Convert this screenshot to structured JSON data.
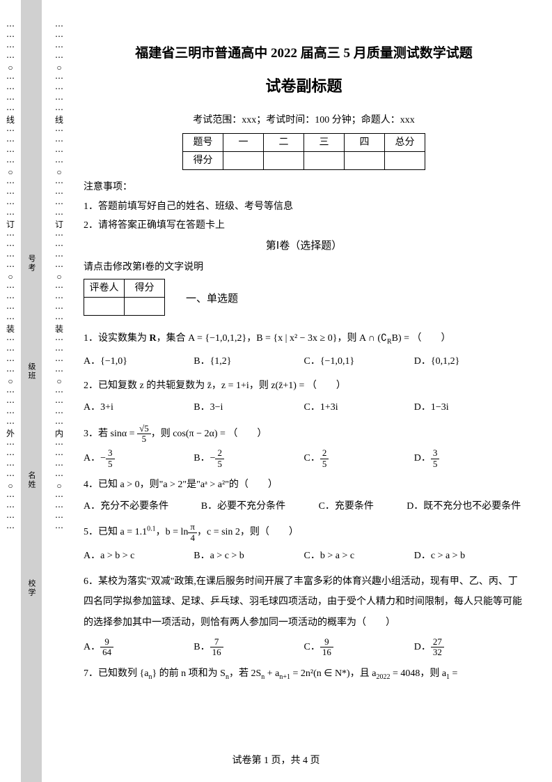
{
  "margin": {
    "left_outer_marks": [
      "⋯",
      "⋯",
      "⋯",
      "⋯",
      "○",
      "⋯",
      "⋯",
      "⋯",
      "⋯",
      "线",
      "⋯",
      "⋯",
      "⋯",
      "⋯",
      "○",
      "⋯",
      "⋯",
      "⋯",
      "⋯",
      "订",
      "⋯",
      "⋯",
      "⋯",
      "⋯",
      "○",
      "⋯",
      "⋯",
      "⋯",
      "⋯",
      "装",
      "⋯",
      "⋯",
      "⋯",
      "⋯",
      "○",
      "⋯",
      "⋯",
      "⋯",
      "⋯",
      "外",
      "⋯",
      "⋯",
      "⋯",
      "⋯",
      "○",
      "⋯",
      "⋯",
      "⋯",
      "⋯"
    ],
    "left_inner_marks": [
      "⋯",
      "⋯",
      "⋯",
      "⋯",
      "○",
      "⋯",
      "⋯",
      "⋯",
      "⋯",
      "线",
      "⋯",
      "⋯",
      "⋯",
      "⋯",
      "○",
      "⋯",
      "⋯",
      "⋯",
      "⋯",
      "订",
      "⋯",
      "⋯",
      "⋯",
      "⋯",
      "○",
      "⋯",
      "⋯",
      "⋯",
      "⋯",
      "装",
      "⋯",
      "⋯",
      "⋯",
      "⋯",
      "○",
      "⋯",
      "⋯",
      "⋯",
      "⋯",
      "内",
      "⋯",
      "⋯",
      "⋯",
      "⋯",
      "○",
      "⋯",
      "⋯",
      "⋯",
      "⋯"
    ],
    "vlabels": [
      "号考",
      "级班",
      "名姓",
      "校学"
    ]
  },
  "header": {
    "title": "福建省三明市普通高中 2022 届高三 5 月质量测试数学试题",
    "subtitle": "试卷副标题",
    "meta": "考试范围：xxx；考试时间：100 分钟；命题人：xxx"
  },
  "score_table": {
    "headers": [
      "题号",
      "一",
      "二",
      "三",
      "四",
      "总分"
    ],
    "row_label": "得分"
  },
  "notes": {
    "heading": "注意事项：",
    "item1": "1．答题前填写好自己的姓名、班级、考号等信息",
    "item2": "2．请将答案正确填写在答题卡上"
  },
  "section": {
    "juan_header": "第Ⅰ卷（选择题）",
    "instruction": "请点击修改第Ⅰ卷的文字说明",
    "grader_headers": [
      "评卷人",
      "得分"
    ],
    "section_label": "一、单选题"
  },
  "q1": {
    "text_before": "1．设实数集为 ",
    "bold_R": "R",
    "text_after": "，集合 A = {−1,0,1,2}，B = {x | x² − 3x ≥ 0}，则 A ∩ (∁",
    "complement_sub": "R",
    "text_end": "B) = （　　）",
    "a": "A．{−1,0}",
    "b": "B．{1,2}",
    "c": "C．{−1,0,1}",
    "d": "D．{0,1,2}"
  },
  "q2": {
    "text": "2．已知复数 z 的共轭复数为 z̄，z = 1+i，则 z(z̄+1) = （　　）",
    "a": "A．3+i",
    "b": "B．3−i",
    "c": "C．1+3i",
    "d": "D．1−3i"
  },
  "q3": {
    "text_before": "3．若 sinα = ",
    "frac_num": "√5",
    "frac_den": "5",
    "text_after": "，则 cos(π − 2α) = （　　）",
    "a_prefix": "A．−",
    "a_num": "3",
    "a_den": "5",
    "b_prefix": "B．−",
    "b_num": "2",
    "b_den": "5",
    "c_prefix": "C．",
    "c_num": "2",
    "c_den": "5",
    "d_prefix": "D．",
    "d_num": "3",
    "d_den": "5"
  },
  "q4": {
    "text": "4．已知 a > 0，则\"a > 2\"是\"aᵃ > a²\"的（　　）",
    "a": "A．充分不必要条件",
    "b": "B．必要不充分条件",
    "c": "C．充要条件",
    "d": "D．既不充分也不必要条件"
  },
  "q5": {
    "text_before": "5．已知 a = 1.1",
    "exp_01": "0.1",
    "text_mid": "，b = ln",
    "frac_num": "π",
    "frac_den": "4",
    "text_after": "，c = sin 2，则（　　）",
    "a": "A．a > b > c",
    "b": "B．a > c > b",
    "c": "C．b > a > c",
    "d": "D．c > a > b"
  },
  "q6": {
    "text": "6．某校为落实\"双减\"政策,在课后服务时间开展了丰富多彩的体育兴趣小组活动，现有甲、乙、丙、丁四名同学拟参加篮球、足球、乒乓球、羽毛球四项活动，由于受个人精力和时间限制，每人只能等可能的选择参加其中一项活动，则恰有两人参加同一项活动的概率为（　　）",
    "a_prefix": "A．",
    "a_num": "9",
    "a_den": "64",
    "b_prefix": "B．",
    "b_num": "7",
    "b_den": "16",
    "c_prefix": "C．",
    "c_num": "9",
    "c_den": "16",
    "d_prefix": "D．",
    "d_num": "27",
    "d_den": "32"
  },
  "q7": {
    "text_before": "7．已知数列 {a",
    "sub_n1": "n",
    "text_mid1": "} 的前 n 项和为 S",
    "sub_n2": "n",
    "text_mid2": "，若 2S",
    "sub_n3": "n",
    "text_mid3": " + a",
    "sub_n4": "n+1",
    "text_mid4": " = 2n²(n ∈ N*)，且 a",
    "sub_2022": "2022",
    "text_mid5": " = 4048，则 a",
    "sub_1": "1",
    "text_end": " ="
  },
  "footer": "试卷第 1 页，共 4 页"
}
